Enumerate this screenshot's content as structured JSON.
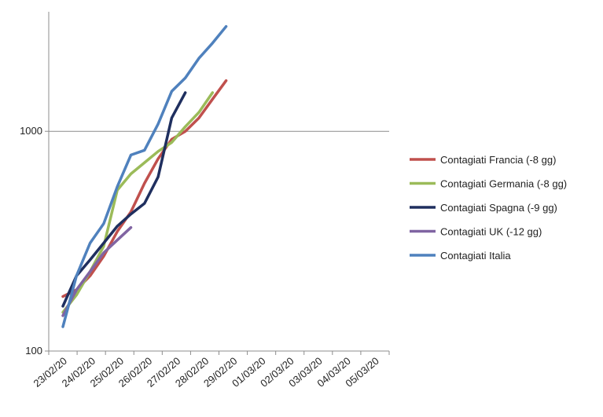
{
  "chart_data": {
    "type": "line",
    "title": "",
    "xlabel": "",
    "ylabel": "",
    "y_scale": "log",
    "ylim": [
      100,
      3500
    ],
    "yticks": [
      100,
      1000
    ],
    "ytick_labels": [
      "100",
      "1000"
    ],
    "gridlines": [
      1000
    ],
    "categories": [
      "23/02/20",
      "24/02/20",
      "25/02/20",
      "26/02/20",
      "27/02/20",
      "28/02/20",
      "29/02/20",
      "01/03/20",
      "02/03/20",
      "03/03/20",
      "04/03/20",
      "05/03/20"
    ],
    "legend_position": "right",
    "series": [
      {
        "name": "Contagiati Francia (-8 gg)",
        "color": "#c0504d",
        "points": [
          [
            0,
            177
          ],
          [
            0.5,
            190
          ],
          [
            1,
            220
          ],
          [
            1.5,
            270
          ],
          [
            2,
            350
          ],
          [
            2.5,
            430
          ],
          [
            3,
            580
          ],
          [
            3.5,
            750
          ],
          [
            4,
            920
          ],
          [
            4.5,
            1000
          ],
          [
            5,
            1150
          ],
          [
            5.5,
            1400
          ],
          [
            6,
            1700
          ]
        ]
      },
      {
        "name": "Contagiati Germania (-8 gg)",
        "color": "#9bbb59",
        "points": [
          [
            0,
            150
          ],
          [
            0.5,
            180
          ],
          [
            1,
            230
          ],
          [
            1.5,
            300
          ],
          [
            2,
            540
          ],
          [
            2.5,
            640
          ],
          [
            3,
            720
          ],
          [
            3.5,
            810
          ],
          [
            4,
            890
          ],
          [
            4.5,
            1050
          ],
          [
            5,
            1220
          ],
          [
            5.5,
            1500
          ]
        ]
      },
      {
        "name": "Contagiati Spagna (-9 gg)",
        "color": "#1f2f5f",
        "points": [
          [
            0,
            160
          ],
          [
            0.5,
            220
          ],
          [
            1,
            260
          ],
          [
            1.5,
            310
          ],
          [
            2,
            370
          ],
          [
            2.5,
            420
          ],
          [
            3,
            470
          ],
          [
            3.5,
            620
          ],
          [
            4,
            1150
          ],
          [
            4.5,
            1500
          ]
        ]
      },
      {
        "name": "Contagiati UK (-12 gg)",
        "color": "#8064a2",
        "points": [
          [
            0,
            145
          ],
          [
            0.5,
            190
          ],
          [
            1,
            230
          ],
          [
            1.5,
            280
          ],
          [
            2,
            320
          ],
          [
            2.5,
            365
          ]
        ]
      },
      {
        "name": "Contagiati Italia",
        "color": "#4f81bd",
        "points": [
          [
            0,
            129
          ],
          [
            0.5,
            220
          ],
          [
            1,
            310
          ],
          [
            1.5,
            380
          ],
          [
            2,
            560
          ],
          [
            2.5,
            780
          ],
          [
            3,
            820
          ],
          [
            3.5,
            1080
          ],
          [
            4,
            1520
          ],
          [
            4.5,
            1750
          ],
          [
            5,
            2150
          ],
          [
            5.5,
            2520
          ],
          [
            6,
            3000
          ]
        ]
      }
    ]
  }
}
